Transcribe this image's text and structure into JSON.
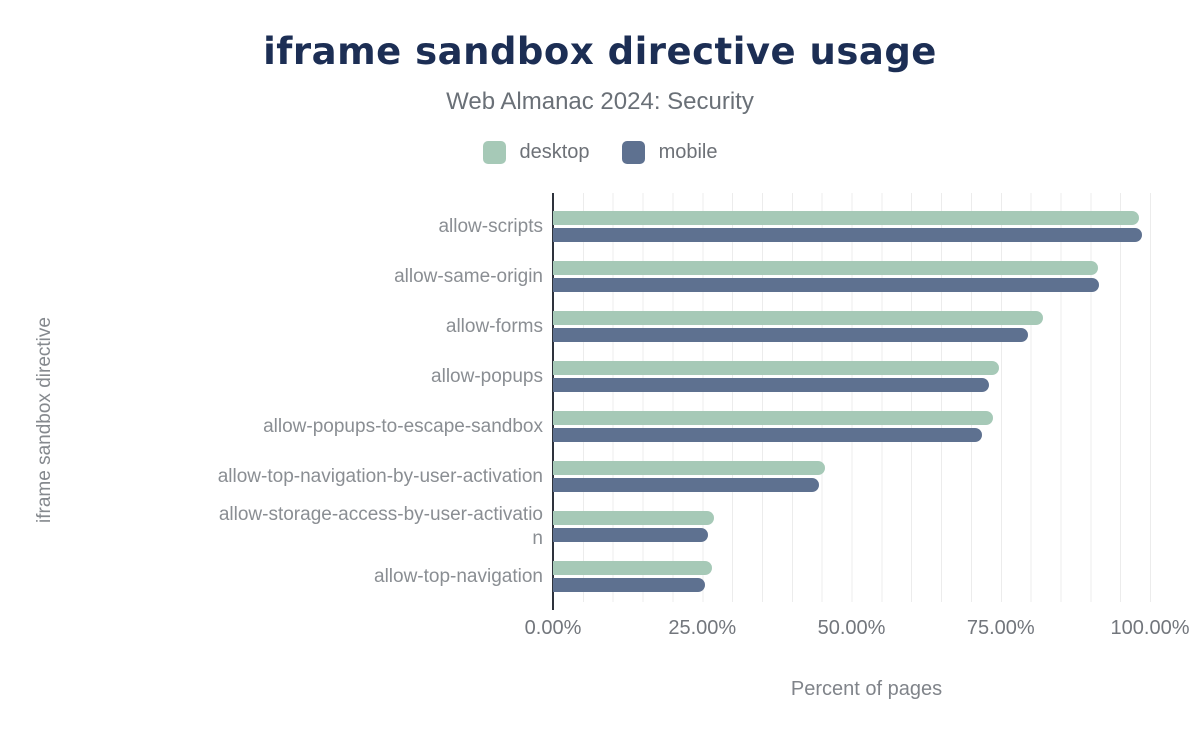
{
  "title": "iframe sandbox directive usage",
  "subtitle": "Web Almanac 2024: Security",
  "legend": [
    {
      "label": "desktop",
      "color": "#a6c9b7"
    },
    {
      "label": "mobile",
      "color": "#5e7190"
    }
  ],
  "colors": {
    "title": "#1c2e54",
    "axis_line": "#2e333c",
    "gridline": "#ececec",
    "label_gray": "#8a8e93"
  },
  "chart_data": {
    "type": "bar",
    "orientation": "horizontal",
    "title": "iframe sandbox directive usage",
    "subtitle": "Web Almanac 2024: Security",
    "xlabel": "Percent of pages",
    "ylabel": "iframe sandbox directive",
    "xlim": [
      0,
      105
    ],
    "grid": "minor vertical gridlines every 5%",
    "legend_position": "top-center",
    "x_ticks": [
      "0.00%",
      "25.00%",
      "50.00%",
      "75.00%",
      "100.00%"
    ],
    "categories": [
      "allow-scripts",
      "allow-same-origin",
      "allow-forms",
      "allow-popups",
      "allow-popups-to-escape-sandbox",
      "allow-top-navigation-by-user-activation",
      "allow-storage-access-by-user-activation",
      "allow-top-navigation"
    ],
    "category_display_overrides": {
      "6": "allow-storage-access-by-user-activatio\nn"
    },
    "series": [
      {
        "name": "desktop",
        "color": "#a6c9b7",
        "values": [
          98.2,
          91.2,
          82.0,
          74.7,
          73.7,
          45.6,
          26.9,
          26.7
        ]
      },
      {
        "name": "mobile",
        "color": "#5e7190",
        "values": [
          98.7,
          91.5,
          79.5,
          73.1,
          71.8,
          44.5,
          25.9,
          25.5
        ]
      }
    ],
    "unit": "%"
  }
}
